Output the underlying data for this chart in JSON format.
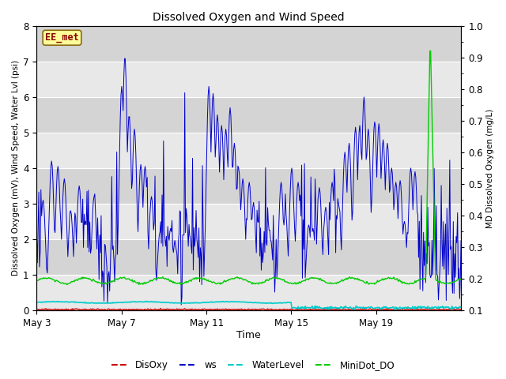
{
  "title": "Dissolved Oxygen and Wind Speed",
  "ylabel_left": "Dissolved Oxygen (mV), Wind Speed, Water Lvl (psi)",
  "ylabel_right": "MD Dissolved Oxygen (mg/L)",
  "xlabel": "Time",
  "ylim_left": [
    0.0,
    8.0
  ],
  "ylim_right": [
    0.1,
    1.0
  ],
  "yticks_left": [
    0.0,
    1.0,
    2.0,
    3.0,
    4.0,
    5.0,
    6.0,
    7.0,
    8.0
  ],
  "yticks_right": [
    0.1,
    0.2,
    0.3,
    0.4,
    0.5,
    0.6,
    0.7,
    0.8,
    0.9,
    1.0
  ],
  "xtick_labels": [
    "May 3",
    "May 7",
    "May 11",
    "May 15",
    "May 19"
  ],
  "xtick_positions": [
    0,
    4,
    8,
    12,
    16
  ],
  "xlim": [
    0,
    20
  ],
  "colors": {
    "DisOxy": "#cc0000",
    "ws": "#0000cc",
    "WaterLevel": "#00cccc",
    "MiniDot_DO": "#00cc00"
  },
  "legend_labels": [
    "DisOxy",
    "ws",
    "WaterLevel",
    "MiniDot_DO"
  ],
  "annotation_text": "EE_met",
  "annotation_color": "#8b0000",
  "annotation_bg": "#ffff99",
  "annotation_border": "#8b6914",
  "plot_bg_light": "#e8e8e8",
  "plot_bg_dark": "#d4d4d4",
  "grid_color": "#ffffff",
  "num_points": 600,
  "x_start": 0,
  "x_end": 20,
  "seed": 42,
  "figsize": [
    6.4,
    4.8
  ],
  "dpi": 100
}
